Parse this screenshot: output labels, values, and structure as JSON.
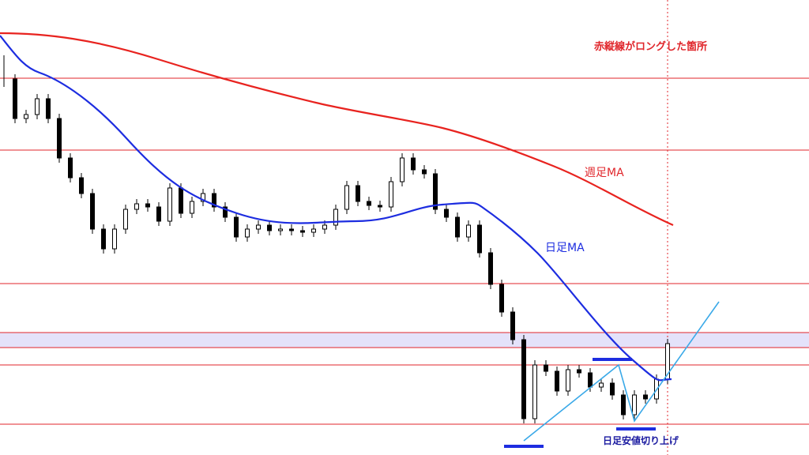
{
  "annotations": {
    "long_point": "赤縦線がロングした箇所",
    "weekly_ma": "週足MA",
    "daily_ma": "日足MA",
    "higher_low": "日足安値切り上げ"
  }
}
